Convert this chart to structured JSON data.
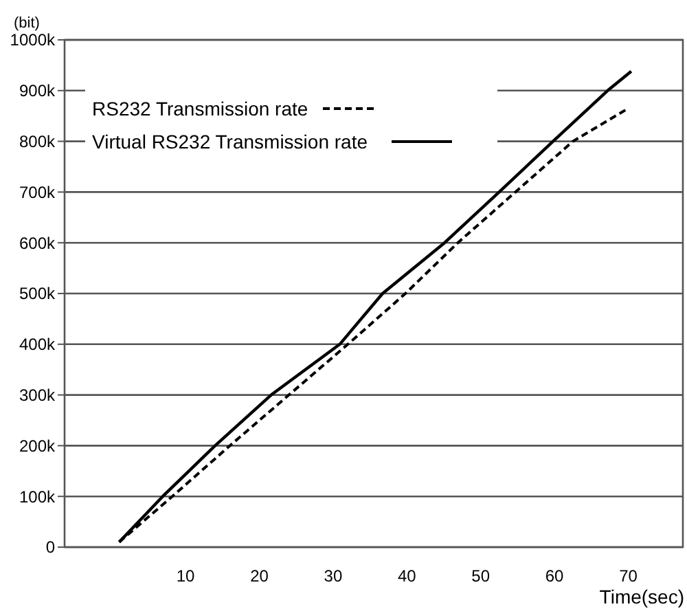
{
  "chart_data": {
    "type": "line",
    "xlabel": "Time(sec)",
    "ylabel": "(bit)",
    "xlim": [
      -6.4,
      77.4
    ],
    "xticks": [
      10,
      20,
      30,
      40,
      50,
      60,
      70
    ],
    "ylim": [
      0,
      1000000
    ],
    "yticks": [
      {
        "value": 0,
        "label": "0"
      },
      {
        "value": 100000,
        "label": "100k"
      },
      {
        "value": 200000,
        "label": "200k"
      },
      {
        "value": 300000,
        "label": "300k"
      },
      {
        "value": 400000,
        "label": "400k"
      },
      {
        "value": 500000,
        "label": "500k"
      },
      {
        "value": 600000,
        "label": "600k"
      },
      {
        "value": 700000,
        "label": "700k"
      },
      {
        "value": 800000,
        "label": "800k"
      },
      {
        "value": 900000,
        "label": "900k"
      },
      {
        "value": 1000000,
        "label": "1000k"
      }
    ],
    "grid": "y",
    "legend": "top left",
    "series": [
      {
        "name": "RS232 Transmission rate",
        "color": "#000000",
        "line_style": "dashed",
        "x": [
          1,
          8.2,
          16,
          24,
          32,
          39.8,
          46.9,
          54.7,
          62.5,
          70
        ],
        "values": [
          10000,
          100000,
          200000,
          300000,
          400000,
          500000,
          600000,
          700000,
          800000,
          865000
        ]
      },
      {
        "name": "Virtual RS232 Transmission rate",
        "color": "#000000",
        "line_style": "solid",
        "x": [
          1,
          6.9,
          14,
          21.6,
          30.9,
          36.7,
          45.1,
          52.5,
          59.8,
          67.2,
          70.4
        ],
        "values": [
          10000,
          100000,
          200000,
          300000,
          400000,
          500000,
          600000,
          700000,
          800000,
          900000,
          938000
        ]
      }
    ]
  }
}
